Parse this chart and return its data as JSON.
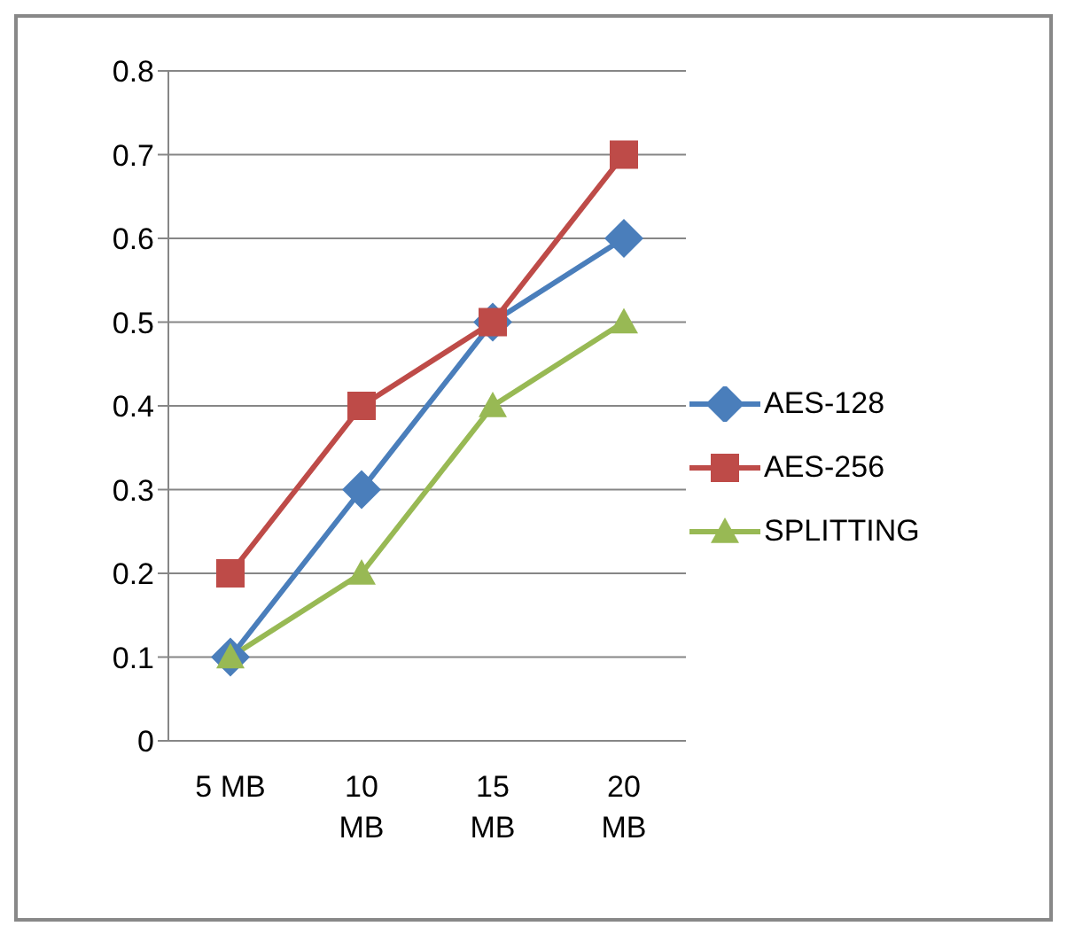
{
  "chart_data": {
    "type": "line",
    "categories": [
      "5 MB",
      "10 MB",
      "15 MB",
      "20 MB"
    ],
    "series": [
      {
        "name": "AES-128",
        "color": "#4a7ebb",
        "values": [
          0.1,
          0.3,
          0.5,
          0.6
        ],
        "marker": "diamond"
      },
      {
        "name": "AES-256",
        "color": "#be4b48",
        "values": [
          0.2,
          0.4,
          0.5,
          0.7
        ],
        "marker": "square"
      },
      {
        "name": "SPLITTING",
        "color": "#98b954",
        "values": [
          0.1,
          0.2,
          0.4,
          0.5
        ],
        "marker": "triangle"
      }
    ],
    "ylim": [
      0,
      0.8
    ],
    "yticks": [
      0,
      0.1,
      0.2,
      0.3,
      0.4,
      0.5,
      0.6,
      0.7,
      0.8
    ],
    "grid": "y",
    "legend": "right",
    "line_style": "solid"
  }
}
